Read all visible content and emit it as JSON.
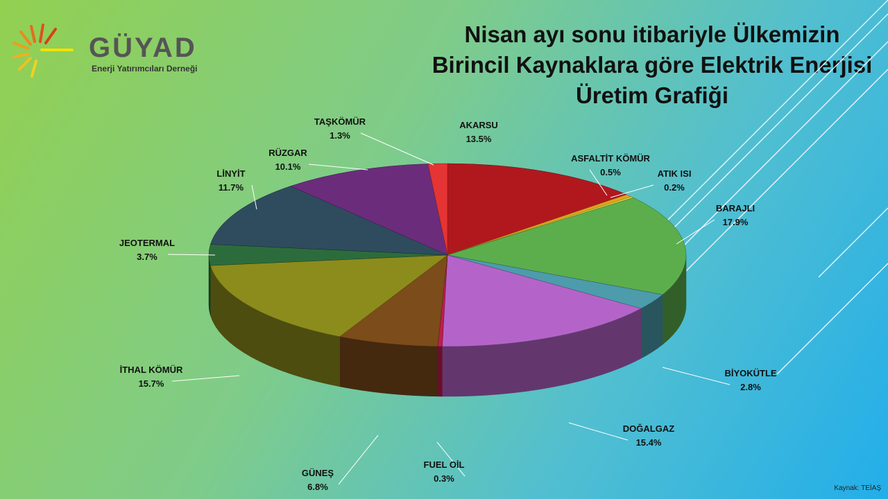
{
  "logo": {
    "name": "GÜYAD",
    "subtitle": "Enerji Yatırımcıları Derneği"
  },
  "source": "Kaynak: TEİAŞ",
  "chart_data": {
    "type": "pie",
    "title": "Nisan ayı sonu itibariyle Ülkemizin Birincil Kaynaklara göre Elektrik Enerjisi Üretim Grafiği",
    "categories": [
      "AKARSU",
      "ASFALTİT KÖMÜR",
      "ATIK ISI",
      "BARAJLI",
      "BİYOKÜTLE",
      "DOĞALGAZ",
      "FUEL OİL",
      "GÜNEŞ",
      "İTHAL KÖMÜR",
      "JEOTERMAL",
      "LİNYİT",
      "RÜZGAR",
      "TAŞKÖMÜR"
    ],
    "values": [
      13.5,
      0.5,
      0.2,
      17.9,
      2.8,
      15.4,
      0.3,
      6.8,
      15.7,
      3.7,
      11.7,
      10.1,
      1.3
    ],
    "value_labels": [
      "13.5%",
      "0.5%",
      "0.2%",
      "17.9%",
      "2.8%",
      "15.4%",
      "0.3%",
      "6.8%",
      "15.7%",
      "3.7%",
      "11.7%",
      "10.1%",
      "1.3%"
    ],
    "colors": [
      "#b0181e",
      "#e0a21e",
      "#e6e040",
      "#5cae4c",
      "#4c9cac",
      "#b464c8",
      "#c01c50",
      "#7c4c1a",
      "#8c8c1c",
      "#2c6c3c",
      "#2e4c5e",
      "#6c2c7c",
      "#e43434"
    ]
  }
}
